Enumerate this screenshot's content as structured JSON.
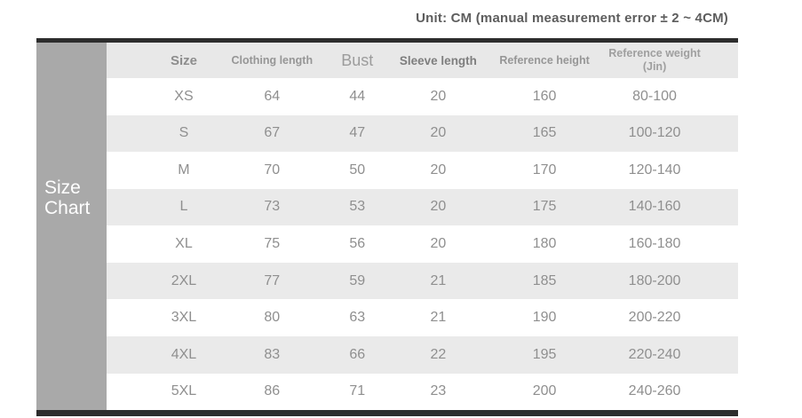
{
  "unit_note": "Unit: CM (manual measurement error ± 2 ~ 4CM)",
  "sidebar": {
    "line1": "Size",
    "line2": "Chart"
  },
  "header": {
    "size": "Size",
    "clothing_length": "Clothing length",
    "bust": "Bust",
    "sleeve_length": "Sleeve length",
    "reference_height": "Reference height",
    "reference_weight_line1": "Reference weight",
    "reference_weight_line2": "(Jin)"
  },
  "chart_data": {
    "type": "table",
    "title": "Size Chart",
    "unit_note": "Unit: CM (manual measurement error ± 2 ~ 4CM)",
    "columns": [
      "Size",
      "Clothing length",
      "Bust",
      "Sleeve length",
      "Reference height",
      "Reference weight (Jin)"
    ],
    "rows": [
      [
        "XS",
        "64",
        "44",
        "20",
        "160",
        "80-100"
      ],
      [
        "S",
        "67",
        "47",
        "20",
        "165",
        "100-120"
      ],
      [
        "M",
        "70",
        "50",
        "20",
        "170",
        "120-140"
      ],
      [
        "L",
        "73",
        "53",
        "20",
        "175",
        "140-160"
      ],
      [
        "XL",
        "75",
        "56",
        "20",
        "180",
        "160-180"
      ],
      [
        "2XL",
        "77",
        "59",
        "21",
        "185",
        "180-200"
      ],
      [
        "3XL",
        "80",
        "63",
        "21",
        "190",
        "200-220"
      ],
      [
        "4XL",
        "83",
        "66",
        "22",
        "195",
        "220-240"
      ],
      [
        "5XL",
        "86",
        "71",
        "23",
        "200",
        "240-260"
      ]
    ],
    "striped_row_labels": [
      "S",
      "L",
      "2XL",
      "4XL"
    ],
    "layout": {
      "stripes": true,
      "sidebar_title_lines": [
        "Size",
        "Chart"
      ]
    }
  },
  "colors": {
    "bar": "#2d2d2d",
    "sidebar_bg": "#a9a9a9",
    "header_bg": "#e8e8e8",
    "stripe_bg": "#eaeaea",
    "value_text": "#8f8f8f",
    "note_text": "#5d5d5d"
  }
}
